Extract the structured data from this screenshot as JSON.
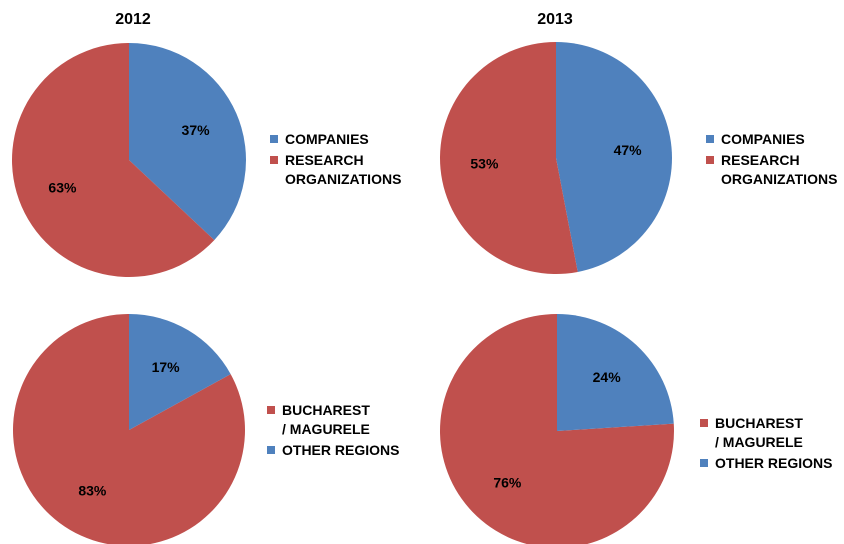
{
  "chart_data": [
    {
      "type": "pie",
      "title": "2012",
      "direction": "clockwise",
      "categories": [
        "COMPANIES",
        "RESEARCH\nORGANIZATIONS"
      ],
      "values": [
        37,
        63
      ],
      "value_labels": [
        "37%",
        "63%"
      ],
      "colors": [
        "#4f81bd",
        "#c0504d"
      ],
      "legend": "right"
    },
    {
      "type": "pie",
      "title": "2013",
      "direction": "clockwise",
      "categories": [
        "COMPANIES",
        "RESEARCH\nORGANIZATIONS"
      ],
      "values": [
        47,
        53
      ],
      "value_labels": [
        "47%",
        "53%"
      ],
      "colors": [
        "#4f81bd",
        "#c0504d"
      ],
      "legend": "right"
    },
    {
      "type": "pie",
      "direction": "counterclockwise",
      "categories": [
        "BUCHAREST\n/ MAGURELE",
        "OTHER REGIONS"
      ],
      "values": [
        83,
        17
      ],
      "value_labels": [
        "83%",
        "17%"
      ],
      "colors": [
        "#c0504d",
        "#4f81bd"
      ],
      "legend": "right"
    },
    {
      "type": "pie",
      "direction": "counterclockwise",
      "categories": [
        "BUCHAREST\n/ MAGURELE",
        "OTHER REGIONS"
      ],
      "values": [
        76,
        24
      ],
      "value_labels": [
        "76%",
        "24%"
      ],
      "colors": [
        "#c0504d",
        "#4f81bd"
      ],
      "legend": "right"
    }
  ]
}
